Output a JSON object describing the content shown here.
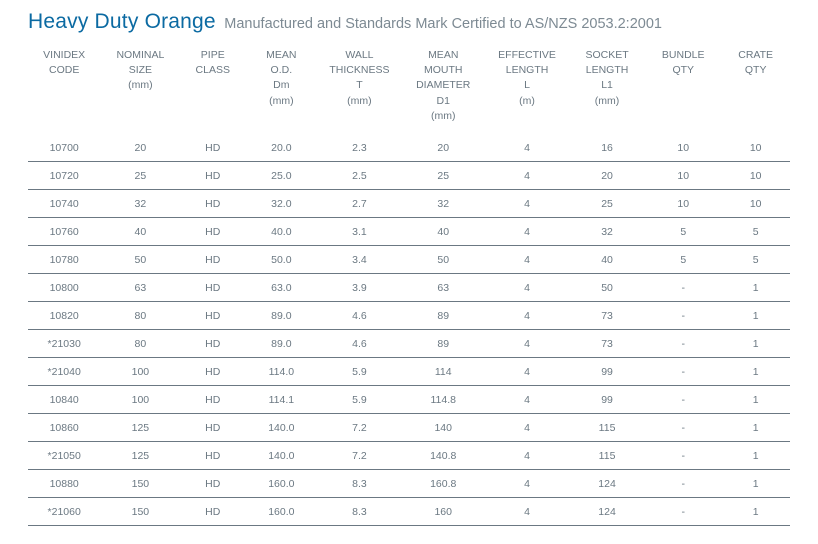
{
  "title": {
    "main": "Heavy Duty Orange",
    "sub": "Manufactured and Standards Mark Certified to AS/NZS 2053.2:2001",
    "main_color": "#0b6aa2",
    "sub_color": "#7d8a93"
  },
  "table": {
    "header_color": "#6b7882",
    "cell_color": "#6b7882",
    "row_border_color": "#6b7882",
    "columns": [
      [
        "VINIDEX",
        "CODE",
        "",
        "",
        ""
      ],
      [
        "NOMINAL",
        "SIZE",
        "(mm)",
        "",
        ""
      ],
      [
        "PIPE",
        "CLASS",
        "",
        "",
        ""
      ],
      [
        "MEAN",
        "O.D.",
        "Dm",
        "(mm)",
        ""
      ],
      [
        "WALL",
        "THICKNESS",
        "T",
        "(mm)",
        ""
      ],
      [
        "MEAN",
        "MOUTH",
        "DIAMETER",
        "D1",
        "(mm)"
      ],
      [
        "EFFECTIVE",
        "LENGTH",
        "L",
        "(m)",
        ""
      ],
      [
        "SOCKET",
        "LENGTH",
        "L1",
        "(mm)",
        ""
      ],
      [
        "BUNDLE",
        "QTY",
        "",
        "",
        ""
      ],
      [
        "CRATE",
        "QTY",
        "",
        "",
        ""
      ]
    ],
    "rows": [
      [
        "10700",
        "20",
        "HD",
        "20.0",
        "2.3",
        "20",
        "4",
        "16",
        "10",
        "10"
      ],
      [
        "10720",
        "25",
        "HD",
        "25.0",
        "2.5",
        "25",
        "4",
        "20",
        "10",
        "10"
      ],
      [
        "10740",
        "32",
        "HD",
        "32.0",
        "2.7",
        "32",
        "4",
        "25",
        "10",
        "10"
      ],
      [
        "10760",
        "40",
        "HD",
        "40.0",
        "3.1",
        "40",
        "4",
        "32",
        "5",
        "5"
      ],
      [
        "10780",
        "50",
        "HD",
        "50.0",
        "3.4",
        "50",
        "4",
        "40",
        "5",
        "5"
      ],
      [
        "10800",
        "63",
        "HD",
        "63.0",
        "3.9",
        "63",
        "4",
        "50",
        "-",
        "1"
      ],
      [
        "10820",
        "80",
        "HD",
        "89.0",
        "4.6",
        "89",
        "4",
        "73",
        "-",
        "1"
      ],
      [
        "*21030",
        "80",
        "HD",
        "89.0",
        "4.6",
        "89",
        "4",
        "73",
        "-",
        "1"
      ],
      [
        "*21040",
        "100",
        "HD",
        "114.0",
        "5.9",
        "114",
        "4",
        "99",
        "-",
        "1"
      ],
      [
        "10840",
        "100",
        "HD",
        "114.1",
        "5.9",
        "114.8",
        "4",
        "99",
        "-",
        "1"
      ],
      [
        "10860",
        "125",
        "HD",
        "140.0",
        "7.2",
        "140",
        "4",
        "115",
        "-",
        "1"
      ],
      [
        "*21050",
        "125",
        "HD",
        "140.0",
        "7.2",
        "140.8",
        "4",
        "115",
        "-",
        "1"
      ],
      [
        "10880",
        "150",
        "HD",
        "160.0",
        "8.3",
        "160.8",
        "4",
        "124",
        "-",
        "1"
      ],
      [
        "*21060",
        "150",
        "HD",
        "160.0",
        "8.3",
        "160",
        "4",
        "124",
        "-",
        "1"
      ]
    ]
  }
}
